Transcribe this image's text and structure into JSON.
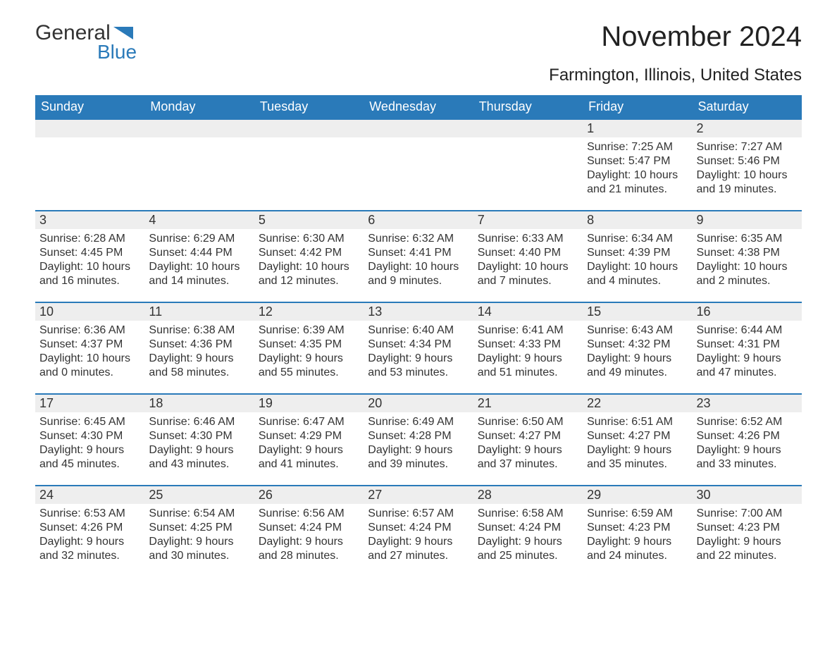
{
  "logo": {
    "word1": "General",
    "word2": "Blue"
  },
  "title": "November 2024",
  "location": "Farmington, Illinois, United States",
  "colors": {
    "header_bg": "#2a7ab9",
    "header_text": "#ffffff",
    "day_bar_bg": "#eeeeee",
    "day_bar_border": "#2a7ab9",
    "body_text": "#333333",
    "page_bg": "#ffffff"
  },
  "weekdays": [
    "Sunday",
    "Monday",
    "Tuesday",
    "Wednesday",
    "Thursday",
    "Friday",
    "Saturday"
  ],
  "labels": {
    "sunrise": "Sunrise: ",
    "sunset": "Sunset: ",
    "daylight": "Daylight: "
  },
  "weeks": [
    [
      null,
      null,
      null,
      null,
      null,
      {
        "day": 1,
        "sunrise": "7:25 AM",
        "sunset": "5:47 PM",
        "daylight": "10 hours and 21 minutes."
      },
      {
        "day": 2,
        "sunrise": "7:27 AM",
        "sunset": "5:46 PM",
        "daylight": "10 hours and 19 minutes."
      }
    ],
    [
      {
        "day": 3,
        "sunrise": "6:28 AM",
        "sunset": "4:45 PM",
        "daylight": "10 hours and 16 minutes."
      },
      {
        "day": 4,
        "sunrise": "6:29 AM",
        "sunset": "4:44 PM",
        "daylight": "10 hours and 14 minutes."
      },
      {
        "day": 5,
        "sunrise": "6:30 AM",
        "sunset": "4:42 PM",
        "daylight": "10 hours and 12 minutes."
      },
      {
        "day": 6,
        "sunrise": "6:32 AM",
        "sunset": "4:41 PM",
        "daylight": "10 hours and 9 minutes."
      },
      {
        "day": 7,
        "sunrise": "6:33 AM",
        "sunset": "4:40 PM",
        "daylight": "10 hours and 7 minutes."
      },
      {
        "day": 8,
        "sunrise": "6:34 AM",
        "sunset": "4:39 PM",
        "daylight": "10 hours and 4 minutes."
      },
      {
        "day": 9,
        "sunrise": "6:35 AM",
        "sunset": "4:38 PM",
        "daylight": "10 hours and 2 minutes."
      }
    ],
    [
      {
        "day": 10,
        "sunrise": "6:36 AM",
        "sunset": "4:37 PM",
        "daylight": "10 hours and 0 minutes."
      },
      {
        "day": 11,
        "sunrise": "6:38 AM",
        "sunset": "4:36 PM",
        "daylight": "9 hours and 58 minutes."
      },
      {
        "day": 12,
        "sunrise": "6:39 AM",
        "sunset": "4:35 PM",
        "daylight": "9 hours and 55 minutes."
      },
      {
        "day": 13,
        "sunrise": "6:40 AM",
        "sunset": "4:34 PM",
        "daylight": "9 hours and 53 minutes."
      },
      {
        "day": 14,
        "sunrise": "6:41 AM",
        "sunset": "4:33 PM",
        "daylight": "9 hours and 51 minutes."
      },
      {
        "day": 15,
        "sunrise": "6:43 AM",
        "sunset": "4:32 PM",
        "daylight": "9 hours and 49 minutes."
      },
      {
        "day": 16,
        "sunrise": "6:44 AM",
        "sunset": "4:31 PM",
        "daylight": "9 hours and 47 minutes."
      }
    ],
    [
      {
        "day": 17,
        "sunrise": "6:45 AM",
        "sunset": "4:30 PM",
        "daylight": "9 hours and 45 minutes."
      },
      {
        "day": 18,
        "sunrise": "6:46 AM",
        "sunset": "4:30 PM",
        "daylight": "9 hours and 43 minutes."
      },
      {
        "day": 19,
        "sunrise": "6:47 AM",
        "sunset": "4:29 PM",
        "daylight": "9 hours and 41 minutes."
      },
      {
        "day": 20,
        "sunrise": "6:49 AM",
        "sunset": "4:28 PM",
        "daylight": "9 hours and 39 minutes."
      },
      {
        "day": 21,
        "sunrise": "6:50 AM",
        "sunset": "4:27 PM",
        "daylight": "9 hours and 37 minutes."
      },
      {
        "day": 22,
        "sunrise": "6:51 AM",
        "sunset": "4:27 PM",
        "daylight": "9 hours and 35 minutes."
      },
      {
        "day": 23,
        "sunrise": "6:52 AM",
        "sunset": "4:26 PM",
        "daylight": "9 hours and 33 minutes."
      }
    ],
    [
      {
        "day": 24,
        "sunrise": "6:53 AM",
        "sunset": "4:26 PM",
        "daylight": "9 hours and 32 minutes."
      },
      {
        "day": 25,
        "sunrise": "6:54 AM",
        "sunset": "4:25 PM",
        "daylight": "9 hours and 30 minutes."
      },
      {
        "day": 26,
        "sunrise": "6:56 AM",
        "sunset": "4:24 PM",
        "daylight": "9 hours and 28 minutes."
      },
      {
        "day": 27,
        "sunrise": "6:57 AM",
        "sunset": "4:24 PM",
        "daylight": "9 hours and 27 minutes."
      },
      {
        "day": 28,
        "sunrise": "6:58 AM",
        "sunset": "4:24 PM",
        "daylight": "9 hours and 25 minutes."
      },
      {
        "day": 29,
        "sunrise": "6:59 AM",
        "sunset": "4:23 PM",
        "daylight": "9 hours and 24 minutes."
      },
      {
        "day": 30,
        "sunrise": "7:00 AM",
        "sunset": "4:23 PM",
        "daylight": "9 hours and 22 minutes."
      }
    ]
  ]
}
